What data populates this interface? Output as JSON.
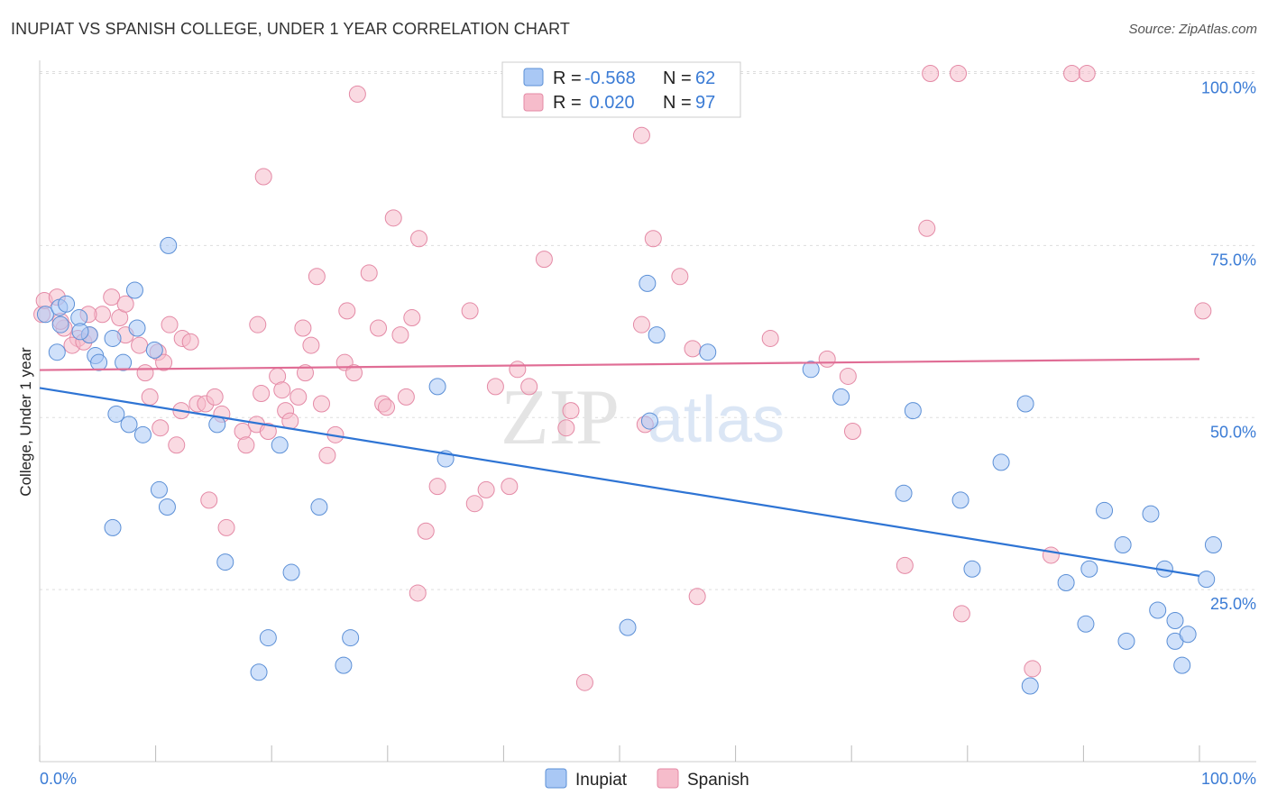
{
  "title": "INUPIAT VS SPANISH COLLEGE, UNDER 1 YEAR CORRELATION CHART",
  "source": "Source: ZipAtlas.com",
  "watermark": {
    "zip": "ZIP",
    "atlas": "atlas"
  },
  "colors": {
    "inupiat_fill": "#a9c8f5",
    "inupiat_stroke": "#5b8fd6",
    "inupiat_line": "#2e74d4",
    "spanish_fill": "#f6bccb",
    "spanish_stroke": "#e48aa6",
    "spanish_line": "#e06d95",
    "axis_text": "#3a7bd5",
    "grid": "#dddddd"
  },
  "legend": {
    "rows": [
      {
        "r_label": "R =",
        "r_value": "-0.568",
        "n_label": "N =",
        "n_value": "62"
      },
      {
        "r_label": "R =",
        "r_value": " 0.020",
        "n_label": "N =",
        "n_value": "97"
      }
    ]
  },
  "bottom_legend": [
    "Inupiat",
    "Spanish"
  ],
  "chart_data": {
    "type": "scatter",
    "title": "INUPIAT VS SPANISH COLLEGE, UNDER 1 YEAR CORRELATION CHART",
    "xlabel": "",
    "ylabel": "College, Under 1 year",
    "xlim": [
      0,
      100
    ],
    "ylim": [
      0,
      105
    ],
    "x_tick_labels": [
      "0.0%",
      "100.0%"
    ],
    "y_tick_labels": [
      "25.0%",
      "50.0%",
      "75.0%",
      "100.0%"
    ],
    "y_ticks": [
      25,
      50,
      75,
      100
    ],
    "grid": true,
    "legend_placement": "top-center",
    "series": [
      {
        "name": "Inupiat",
        "R": -0.568,
        "N": 62,
        "trend": {
          "x": [
            0,
            100
          ],
          "y": [
            54.3,
            27.0
          ]
        },
        "points": [
          [
            0.5,
            65
          ],
          [
            1.7,
            66
          ],
          [
            1.8,
            63.5
          ],
          [
            1.5,
            59.5
          ],
          [
            2.3,
            66.5
          ],
          [
            3.4,
            64.5
          ],
          [
            4.3,
            62
          ],
          [
            3.5,
            62.5
          ],
          [
            6.3,
            61.5
          ],
          [
            4.8,
            59
          ],
          [
            5.1,
            58
          ],
          [
            8.2,
            68.5
          ],
          [
            8.4,
            63
          ],
          [
            11.1,
            75
          ],
          [
            7.2,
            58
          ],
          [
            9.9,
            59.8
          ],
          [
            6.6,
            50.5
          ],
          [
            7.7,
            49
          ],
          [
            8.9,
            47.5
          ],
          [
            10.3,
            39.5
          ],
          [
            11,
            37
          ],
          [
            6.3,
            34
          ],
          [
            15.3,
            49
          ],
          [
            20.7,
            46
          ],
          [
            16,
            29
          ],
          [
            21.7,
            27.5
          ],
          [
            24.1,
            37
          ],
          [
            26.8,
            18
          ],
          [
            19.7,
            18
          ],
          [
            18.9,
            13
          ],
          [
            26.2,
            14
          ],
          [
            35,
            44
          ],
          [
            34.3,
            54.5
          ],
          [
            52.4,
            69.5
          ],
          [
            53.2,
            62
          ],
          [
            52.6,
            49.5
          ],
          [
            57.6,
            59.5
          ],
          [
            50.7,
            19.5
          ],
          [
            66.5,
            57
          ],
          [
            69.1,
            53
          ],
          [
            75.3,
            51
          ],
          [
            74.5,
            39
          ],
          [
            79.4,
            38
          ],
          [
            80.4,
            28
          ],
          [
            82.9,
            43.5
          ],
          [
            85,
            52
          ],
          [
            85.4,
            11
          ],
          [
            88.5,
            26
          ],
          [
            90.5,
            28
          ],
          [
            90.2,
            20
          ],
          [
            91.8,
            36.5
          ],
          [
            93.4,
            31.5
          ],
          [
            93.7,
            17.5
          ],
          [
            95.8,
            36
          ],
          [
            96.4,
            22
          ],
          [
            97,
            28
          ],
          [
            97.9,
            20.5
          ],
          [
            97.9,
            17.5
          ],
          [
            98.5,
            14
          ],
          [
            99,
            18.5
          ],
          [
            100.6,
            26.5
          ],
          [
            101.2,
            31.5
          ]
        ]
      },
      {
        "name": "Spanish",
        "R": 0.02,
        "N": 97,
        "trend": {
          "x": [
            0,
            100
          ],
          "y": [
            56.9,
            58.5
          ]
        },
        "points": [
          [
            0.2,
            65
          ],
          [
            0.4,
            67
          ],
          [
            1.5,
            67.5
          ],
          [
            2.1,
            63
          ],
          [
            1.8,
            64
          ],
          [
            3.3,
            61.5
          ],
          [
            2.8,
            60.5
          ],
          [
            3.8,
            61
          ],
          [
            4.3,
            62
          ],
          [
            5.4,
            65
          ],
          [
            4.2,
            65
          ],
          [
            6.2,
            67.5
          ],
          [
            6.9,
            64.5
          ],
          [
            7.4,
            66.5
          ],
          [
            7.4,
            62
          ],
          [
            8.6,
            60.5
          ],
          [
            10.2,
            59.5
          ],
          [
            10.7,
            58
          ],
          [
            11.2,
            63.5
          ],
          [
            9.1,
            56.5
          ],
          [
            9.5,
            53
          ],
          [
            10.4,
            48.5
          ],
          [
            11.8,
            46
          ],
          [
            12.3,
            61.5
          ],
          [
            12.2,
            51
          ],
          [
            13,
            61
          ],
          [
            13.6,
            52
          ],
          [
            14.3,
            52
          ],
          [
            15.1,
            53
          ],
          [
            15.7,
            50.5
          ],
          [
            14.6,
            38
          ],
          [
            16.1,
            34
          ],
          [
            17.5,
            48
          ],
          [
            17.8,
            46
          ],
          [
            18.7,
            49
          ],
          [
            18.8,
            63.5
          ],
          [
            19.1,
            53.5
          ],
          [
            19.7,
            48
          ],
          [
            19.3,
            85
          ],
          [
            20.5,
            56
          ],
          [
            20.9,
            54
          ],
          [
            21.2,
            51
          ],
          [
            21.6,
            49.5
          ],
          [
            22.3,
            53
          ],
          [
            22.9,
            56.5
          ],
          [
            22.7,
            63
          ],
          [
            23.4,
            60.5
          ],
          [
            23.9,
            70.5
          ],
          [
            24.3,
            52
          ],
          [
            24.8,
            44.5
          ],
          [
            25.5,
            47.5
          ],
          [
            26.3,
            58
          ],
          [
            26.5,
            65.5
          ],
          [
            27.1,
            56.5
          ],
          [
            27.4,
            97
          ],
          [
            28.4,
            71
          ],
          [
            29.2,
            63
          ],
          [
            29.6,
            52
          ],
          [
            29.9,
            51.5
          ],
          [
            30.5,
            79
          ],
          [
            31.1,
            62
          ],
          [
            31.6,
            53
          ],
          [
            32.1,
            64.5
          ],
          [
            32.7,
            76
          ],
          [
            33.3,
            33.5
          ],
          [
            32.6,
            24.5
          ],
          [
            34.3,
            40
          ],
          [
            37.1,
            65.5
          ],
          [
            37.5,
            37.5
          ],
          [
            38.5,
            39.5
          ],
          [
            39.3,
            54.5
          ],
          [
            40.5,
            40
          ],
          [
            41.2,
            57
          ],
          [
            42.2,
            54.5
          ],
          [
            43.5,
            73
          ],
          [
            45.4,
            48.5
          ],
          [
            45.8,
            51
          ],
          [
            47,
            11.5
          ],
          [
            51.9,
            91
          ],
          [
            51.9,
            63.5
          ],
          [
            52.2,
            49
          ],
          [
            52.9,
            76
          ],
          [
            55.2,
            70.5
          ],
          [
            56.3,
            60
          ],
          [
            56.7,
            24
          ],
          [
            63,
            61.5
          ],
          [
            67.9,
            58.5
          ],
          [
            69.7,
            56
          ],
          [
            70.1,
            48
          ],
          [
            74.6,
            28.5
          ],
          [
            76.5,
            77.5
          ],
          [
            76.8,
            100
          ],
          [
            79.2,
            100
          ],
          [
            79.5,
            21.5
          ],
          [
            85.6,
            13.5
          ],
          [
            87.2,
            30
          ],
          [
            89,
            100
          ],
          [
            90.3,
            100
          ],
          [
            100.3,
            65.5
          ]
        ]
      }
    ]
  }
}
